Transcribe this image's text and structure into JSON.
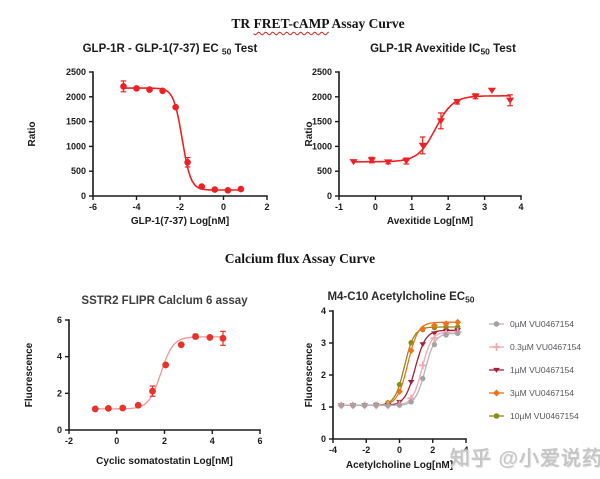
{
  "page": {
    "header_top": {
      "pre": "TR ",
      "underlined": "FRET-cAMP",
      "post": " Assay Curve"
    },
    "header_middle": "Calcium flux Assay Curve",
    "watermark": "知乎 @小爱说药"
  },
  "colors": {
    "accent_red": "#ed2024",
    "axis": "#1a1a1a",
    "legend_text": "#58555a",
    "watermark_gray": "#c6c6c6",
    "wavy_underline": "#cc2222"
  },
  "chart_data": [
    {
      "id": "glp1r-glp1-ec50",
      "type": "scatter",
      "title": {
        "pre": "GLP-1R - GLP-1(7-37) EC ",
        "sub": "50",
        "post": " Test"
      },
      "title_color": "#1b1b1b",
      "xlabel": "GLP-1(7-37) Log[nM]",
      "ylabel": "Ratio",
      "xlim": [
        -6,
        2
      ],
      "xticks": [
        -6,
        -4,
        -2,
        0,
        2
      ],
      "ylim": [
        0,
        2500
      ],
      "yticks": [
        0,
        500,
        1000,
        1500,
        2000,
        2500
      ],
      "grid": false,
      "series": [
        {
          "name": null,
          "marker": "circle",
          "marker_color": "#ed2024",
          "line_color": "#ed2024",
          "curve": {
            "bottom": 120,
            "top": 2175,
            "ec50": -1.9,
            "hill": -2.2,
            "range": [
              -4.6,
              0.8
            ]
          },
          "points": [
            {
              "x": -4.6,
              "y": 2210,
              "err": 110
            },
            {
              "x": -4.0,
              "y": 2170
            },
            {
              "x": -3.4,
              "y": 2145
            },
            {
              "x": -2.8,
              "y": 2120
            },
            {
              "x": -2.2,
              "y": 1790
            },
            {
              "x": -1.65,
              "y": 680,
              "err": 95
            },
            {
              "x": -1.0,
              "y": 190
            },
            {
              "x": -0.4,
              "y": 130
            },
            {
              "x": 0.2,
              "y": 115
            },
            {
              "x": 0.8,
              "y": 140
            }
          ]
        }
      ]
    },
    {
      "id": "glp1r-avexitide-ic50",
      "type": "scatter",
      "title": {
        "pre": "GLP-1R Avexitide IC",
        "sub": "50",
        "post": " Test"
      },
      "title_color": "#1b1b1b",
      "xlabel": "Avexitide Log[nM]",
      "ylabel": "Ratio",
      "xlim": [
        -1,
        4
      ],
      "xticks": [
        -1,
        0,
        1,
        2,
        3,
        4
      ],
      "ylim": [
        0,
        2500
      ],
      "yticks": [
        0,
        500,
        1000,
        1500,
        2000,
        2500
      ],
      "grid": false,
      "series": [
        {
          "name": null,
          "marker": "triangle-down",
          "marker_color": "#ed2024",
          "line_color": "#ed2024",
          "curve": {
            "bottom": 690,
            "top": 2020,
            "ec50": 1.65,
            "hill": 1.8,
            "range": [
              -0.6,
              3.7
            ]
          },
          "points": [
            {
              "x": -0.6,
              "y": 690
            },
            {
              "x": -0.1,
              "y": 725,
              "err": 55
            },
            {
              "x": 0.35,
              "y": 685,
              "err": 35
            },
            {
              "x": 0.85,
              "y": 705,
              "err": 60
            },
            {
              "x": 1.3,
              "y": 1020,
              "err": 170
            },
            {
              "x": 1.8,
              "y": 1515,
              "err": 160
            },
            {
              "x": 2.25,
              "y": 1900,
              "err": 45
            },
            {
              "x": 2.75,
              "y": 2010,
              "err": 50
            },
            {
              "x": 3.2,
              "y": 2130
            },
            {
              "x": 3.7,
              "y": 1930,
              "err": 110
            }
          ]
        }
      ]
    },
    {
      "id": "sstr2-flipr-calcium6",
      "type": "scatter",
      "title": {
        "pre": "SSTR2 FLIPR Calclum 6 assay",
        "sub": "",
        "post": ""
      },
      "title_color": "#3d3d3d",
      "xlabel": "Cyclic somatostatin Log[nM]",
      "ylabel": "Fluorescence",
      "xlim": [
        -2,
        6
      ],
      "xticks": [
        -2,
        0,
        2,
        4,
        6
      ],
      "ylim": [
        0,
        6
      ],
      "yticks": [
        0,
        2,
        4,
        6
      ],
      "grid": false,
      "series": [
        {
          "name": null,
          "marker": "circle",
          "marker_color": "#e8312a",
          "line_color": "#f4958f",
          "curve": {
            "bottom": 1.15,
            "top": 5.08,
            "ec50": 1.85,
            "hill": 1.7,
            "range": [
              -0.9,
              4.45
            ]
          },
          "points": [
            {
              "x": -0.9,
              "y": 1.15
            },
            {
              "x": -0.35,
              "y": 1.18
            },
            {
              "x": 0.25,
              "y": 1.2
            },
            {
              "x": 0.9,
              "y": 1.35
            },
            {
              "x": 1.5,
              "y": 2.12,
              "err": 0.28
            },
            {
              "x": 2.05,
              "y": 3.55
            },
            {
              "x": 2.7,
              "y": 4.65
            },
            {
              "x": 3.3,
              "y": 5.1,
              "err": 0.12
            },
            {
              "x": 3.9,
              "y": 5.05
            },
            {
              "x": 4.45,
              "y": 5.0,
              "err": 0.38
            }
          ]
        }
      ]
    },
    {
      "id": "m4-c10-acetylcholine-ec50",
      "type": "scatter",
      "title": {
        "pre": "M4-C10 Acetylcholine EC",
        "sub": "50",
        "post": ""
      },
      "title_color": "#2a2a2a",
      "xlabel": "Acetylcholine Log[nM]",
      "ylabel": "Fluorescence",
      "xlim": [
        -4,
        4
      ],
      "xticks": [
        -4,
        -2,
        0,
        2,
        4
      ],
      "ylim": [
        0,
        4
      ],
      "yticks": [
        0,
        1,
        2,
        3,
        4
      ],
      "grid": false,
      "legend_position": "right",
      "series": [
        {
          "name": "0µM VU0467154",
          "marker": "circle",
          "marker_color": "#a6a1a4",
          "line_color": "#b9b4b7",
          "curve": {
            "bottom": 1.05,
            "top": 3.3,
            "ec50": 1.55,
            "hill": 1.5,
            "range": [
              -3.5,
              3.5
            ]
          },
          "points": [
            {
              "x": -3.5,
              "y": 1.05
            },
            {
              "x": -2.8,
              "y": 1.05
            },
            {
              "x": -2.1,
              "y": 1.05
            },
            {
              "x": -1.4,
              "y": 1.05
            },
            {
              "x": -0.7,
              "y": 1.05
            },
            {
              "x": 0,
              "y": 1.06
            },
            {
              "x": 0.7,
              "y": 1.16
            },
            {
              "x": 1.4,
              "y": 1.89
            },
            {
              "x": 2.1,
              "y": 2.95
            },
            {
              "x": 2.8,
              "y": 3.25
            },
            {
              "x": 3.5,
              "y": 3.3
            }
          ]
        },
        {
          "name": "0.3µM VU0467154",
          "marker": "plus",
          "marker_color": "#f3a7b3",
          "line_color": "#f3a7b3",
          "curve": {
            "bottom": 1.05,
            "top": 3.35,
            "ec50": 1.35,
            "hill": 1.5,
            "range": [
              -3.5,
              3.5
            ]
          },
          "points": [
            {
              "x": -3.5,
              "y": 1.05
            },
            {
              "x": -2.8,
              "y": 1.05
            },
            {
              "x": -2.1,
              "y": 1.05
            },
            {
              "x": -1.4,
              "y": 1.05
            },
            {
              "x": -0.7,
              "y": 1.05
            },
            {
              "x": 0,
              "y": 1.08
            },
            {
              "x": 0.7,
              "y": 1.27
            },
            {
              "x": 1.4,
              "y": 2.3
            },
            {
              "x": 2.1,
              "y": 3.15
            },
            {
              "x": 2.8,
              "y": 3.3
            },
            {
              "x": 3.5,
              "y": 3.35
            }
          ]
        },
        {
          "name": "1µM VU0467154",
          "marker": "triangle-down",
          "marker_color": "#a32037",
          "line_color": "#a32037",
          "curve": {
            "bottom": 1.05,
            "top": 3.4,
            "ec50": 0.95,
            "hill": 1.4,
            "range": [
              -3.5,
              3.5
            ]
          },
          "points": [
            {
              "x": -3.5,
              "y": 1.05
            },
            {
              "x": -2.8,
              "y": 1.05
            },
            {
              "x": -2.1,
              "y": 1.05
            },
            {
              "x": -1.4,
              "y": 1.05
            },
            {
              "x": -0.7,
              "y": 1.06
            },
            {
              "x": 0,
              "y": 1.16
            },
            {
              "x": 0.7,
              "y": 1.78
            },
            {
              "x": 1.4,
              "y": 2.96
            },
            {
              "x": 2.1,
              "y": 3.3
            },
            {
              "x": 2.8,
              "y": 3.38
            },
            {
              "x": 3.5,
              "y": 3.4
            }
          ]
        },
        {
          "name": "3µM VU0467154",
          "marker": "diamond",
          "marker_color": "#f0731c",
          "line_color": "#f0731c",
          "curve": {
            "bottom": 1.05,
            "top": 3.65,
            "ec50": 0.5,
            "hill": 1.4,
            "range": [
              -3.5,
              3.5
            ]
          },
          "points": [
            {
              "x": -3.5,
              "y": 1.05
            },
            {
              "x": -2.8,
              "y": 1.05
            },
            {
              "x": -2.1,
              "y": 1.05
            },
            {
              "x": -1.4,
              "y": 1.06
            },
            {
              "x": -0.7,
              "y": 1.1
            },
            {
              "x": 0,
              "y": 1.48
            },
            {
              "x": 0.7,
              "y": 2.76
            },
            {
              "x": 1.4,
              "y": 3.45
            },
            {
              "x": 2.1,
              "y": 3.55
            },
            {
              "x": 2.8,
              "y": 3.6
            },
            {
              "x": 3.5,
              "y": 3.65
            }
          ]
        },
        {
          "name": "10µM VU0467154",
          "marker": "circle",
          "marker_color": "#8f8c15",
          "line_color": "#8f8c15",
          "curve": {
            "bottom": 1.05,
            "top": 3.5,
            "ec50": 0.3,
            "hill": 1.5,
            "range": [
              -3.5,
              3.5
            ]
          },
          "points": [
            {
              "x": -3.5,
              "y": 1.05
            },
            {
              "x": -2.8,
              "y": 1.05
            },
            {
              "x": -2.1,
              "y": 1.05
            },
            {
              "x": -1.4,
              "y": 1.07
            },
            {
              "x": -0.7,
              "y": 1.13
            },
            {
              "x": 0,
              "y": 1.7
            },
            {
              "x": 0.7,
              "y": 3.01
            },
            {
              "x": 1.4,
              "y": 3.42
            },
            {
              "x": 2.1,
              "y": 3.48
            },
            {
              "x": 2.8,
              "y": 3.5
            },
            {
              "x": 3.5,
              "y": 3.5
            }
          ]
        }
      ]
    }
  ]
}
